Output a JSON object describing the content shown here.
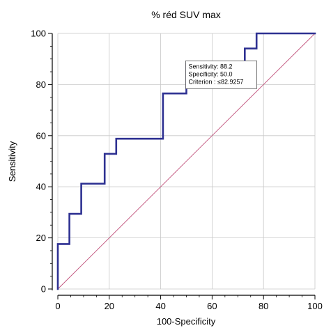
{
  "chart_data": {
    "type": "line",
    "title": "% réd SUV max",
    "xlabel": "100-Specificity",
    "ylabel": "Sensitivity",
    "xlim": [
      0,
      100
    ],
    "ylim": [
      0,
      100
    ],
    "x_ticks": [
      0,
      20,
      40,
      60,
      80,
      100
    ],
    "y_ticks": [
      0,
      20,
      40,
      60,
      80,
      100
    ],
    "grid": true,
    "colors": {
      "roc": "#2e3192",
      "diagonal": "#c0507a",
      "grid": "#c8c8c8"
    },
    "roc_curve": [
      [
        0,
        0
      ],
      [
        0,
        17.6
      ],
      [
        4.5,
        17.6
      ],
      [
        4.5,
        29.4
      ],
      [
        9.1,
        29.4
      ],
      [
        9.1,
        41.2
      ],
      [
        18.2,
        41.2
      ],
      [
        18.2,
        52.9
      ],
      [
        22.7,
        52.9
      ],
      [
        22.7,
        58.8
      ],
      [
        40.9,
        58.8
      ],
      [
        40.9,
        76.5
      ],
      [
        50,
        76.5
      ],
      [
        50,
        88.2
      ],
      [
        72.7,
        88.2
      ],
      [
        72.7,
        94.1
      ],
      [
        77.3,
        94.1
      ],
      [
        77.3,
        100
      ],
      [
        100,
        100
      ]
    ],
    "diagonal": [
      [
        0,
        0
      ],
      [
        100,
        100
      ]
    ],
    "annotation": {
      "lines": [
        "Sensitivity: 88.2",
        "Specificity: 50.0",
        "Criterion : ≤82.9257"
      ],
      "anchor_x": 50,
      "anchor_y": 88.2
    }
  }
}
